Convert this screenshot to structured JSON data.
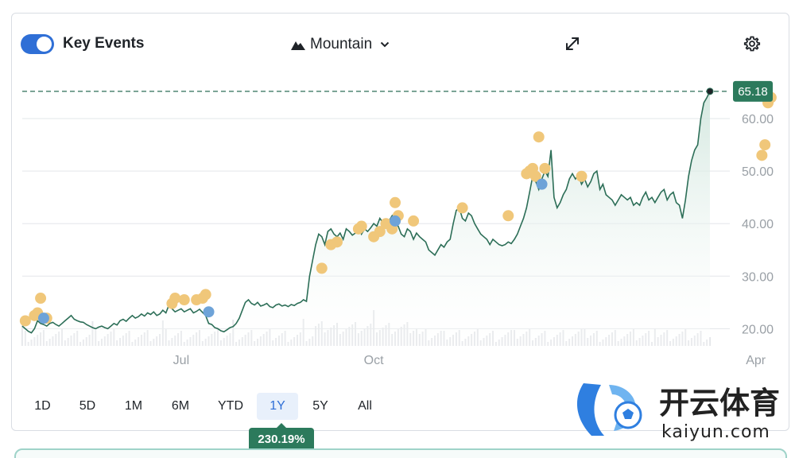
{
  "header": {
    "key_events_label": "Key Events",
    "key_events_on": true,
    "chart_type_label": "Mountain",
    "icons": [
      "toggle-switch",
      "mountain-icon",
      "chevron-down-icon",
      "expand-icon",
      "gear-icon"
    ]
  },
  "periods": [
    "1D",
    "5D",
    "1M",
    "6M",
    "YTD",
    "1Y",
    "5Y",
    "All"
  ],
  "active_period": "1Y",
  "change_badge": "230.19%",
  "watermark": {
    "brand_cn": "开云体育",
    "brand_url": "kaiyun.com"
  },
  "colors": {
    "line": "#2c6e57",
    "area_top": "#cfe5dc",
    "event_dot": "#f0c77a",
    "event_dot_blue": "#6ea3d8",
    "current_badge": "#2c7a5c",
    "toggle": "#2f6fd6"
  },
  "chart_data": {
    "type": "area",
    "title": "",
    "xlabel": "",
    "ylabel": "",
    "ylim": [
      14,
      70
    ],
    "yticks": [
      "20.00",
      "30.00",
      "40.00",
      "50.00",
      "60.00"
    ],
    "ytick_values": [
      20,
      30,
      40,
      50,
      60
    ],
    "xticks": [
      {
        "label": "Jul",
        "index": 52
      },
      {
        "label": "Oct",
        "index": 115
      },
      {
        "label": "Apr",
        "index": 240
      }
    ],
    "current_value": 65.18,
    "current_label": "65.18",
    "series": [
      {
        "values": [
          20.5,
          20,
          19.5,
          19.2,
          20,
          21.5,
          21,
          20.8,
          20.5,
          21,
          21.2,
          20.8,
          20.5,
          21,
          21.5,
          22,
          22.5,
          21.8,
          21.5,
          21.3,
          21.2,
          20.8,
          20.5,
          20.2,
          20,
          20.3,
          20.5,
          20.2,
          20,
          20.5,
          21,
          20.7,
          21.5,
          21.8,
          21.4,
          22,
          22.5,
          22,
          22.3,
          22.8,
          22.4,
          23,
          22.7,
          23.2,
          22.5,
          22.8,
          23.5,
          23,
          24.5,
          23.8,
          23.2,
          23.5,
          23.8,
          23.2,
          23.5,
          23.8,
          23,
          23.3,
          23.7,
          23.1,
          22.5,
          21,
          20.8,
          20.2,
          20,
          19.6,
          19.4,
          19.8,
          20.2,
          20.4,
          21,
          22,
          23.5,
          25,
          25.5,
          24.8,
          24.5,
          25,
          24.3,
          24.5,
          24.8,
          24.2,
          24,
          24.5,
          24.7,
          24.3,
          24.5,
          24.2,
          24.6,
          24.4,
          24.8,
          25,
          25.5,
          25.2,
          30,
          33,
          36,
          38,
          37.5,
          36,
          38.5,
          39,
          38,
          37.5,
          38.2,
          37,
          39,
          38.5,
          37.8,
          38.2,
          39.5,
          38,
          39,
          38.5,
          39.2,
          40,
          39.5,
          41,
          40.2,
          39.8,
          40.5,
          41.5,
          40,
          39.5,
          38,
          37.5,
          39,
          38.5,
          37,
          38.2,
          37.5,
          37,
          36.5,
          35,
          34.5,
          34,
          35,
          36,
          35.5,
          36.5,
          37,
          40,
          42.5,
          43,
          41,
          40.5,
          42,
          41.5,
          40,
          39,
          38,
          37.5,
          37,
          36,
          37,
          36.5,
          36,
          35.8,
          36,
          36.5,
          36.2,
          37,
          38,
          39.5,
          41,
          43,
          46,
          49,
          48,
          46.5,
          48.5,
          50,
          49,
          54,
          45,
          43,
          44,
          45.5,
          46.5,
          48.5,
          49.5,
          48.5,
          49.2,
          47.5,
          48.5,
          47,
          48,
          49.5,
          50,
          46.5,
          47.5,
          45.5,
          45,
          44.5,
          43.5,
          44.5,
          45.5,
          45,
          44.5,
          45,
          43.5,
          44,
          43.5,
          45,
          46,
          44.5,
          45,
          44,
          45,
          46,
          46.5,
          44.5,
          45.5,
          46,
          44,
          43.5,
          41,
          44.5,
          49,
          52,
          54,
          55,
          60,
          63,
          64,
          65.18
        ],
        "events": [
          {
            "i": 1,
            "v": 21.5
          },
          {
            "i": 4,
            "v": 22.5
          },
          {
            "i": 5,
            "v": 23
          },
          {
            "i": 6,
            "v": 25.8
          },
          {
            "i": 8,
            "v": 22
          },
          {
            "i": 49,
            "v": 24.8
          },
          {
            "i": 50,
            "v": 25.8
          },
          {
            "i": 53,
            "v": 25.5
          },
          {
            "i": 57,
            "v": 25.5
          },
          {
            "i": 59,
            "v": 25.8
          },
          {
            "i": 60,
            "v": 26.5
          },
          {
            "i": 98,
            "v": 31.5
          },
          {
            "i": 101,
            "v": 36
          },
          {
            "i": 103,
            "v": 36.5
          },
          {
            "i": 110,
            "v": 39
          },
          {
            "i": 111,
            "v": 39.5
          },
          {
            "i": 115,
            "v": 37.5
          },
          {
            "i": 117,
            "v": 38.5
          },
          {
            "i": 119,
            "v": 40
          },
          {
            "i": 121,
            "v": 39
          },
          {
            "i": 122,
            "v": 44
          },
          {
            "i": 123,
            "v": 41.5
          },
          {
            "i": 128,
            "v": 40.5
          },
          {
            "i": 144,
            "v": 43
          },
          {
            "i": 159,
            "v": 41.5
          },
          {
            "i": 165,
            "v": 49.5
          },
          {
            "i": 166,
            "v": 50
          },
          {
            "i": 167,
            "v": 50.5
          },
          {
            "i": 168,
            "v": 49
          },
          {
            "i": 169,
            "v": 56.5
          },
          {
            "i": 171,
            "v": 50.5
          },
          {
            "i": 183,
            "v": 49
          },
          {
            "i": 242,
            "v": 53
          },
          {
            "i": 243,
            "v": 55
          },
          {
            "i": 244,
            "v": 63
          },
          {
            "i": 245,
            "v": 64
          }
        ],
        "events_blue": [
          {
            "i": 7,
            "v": 22
          },
          {
            "i": 61,
            "v": 23.2
          },
          {
            "i": 122,
            "v": 40.5
          },
          {
            "i": 170,
            "v": 47.5
          }
        ]
      }
    ],
    "legend": "none",
    "grid": true
  }
}
